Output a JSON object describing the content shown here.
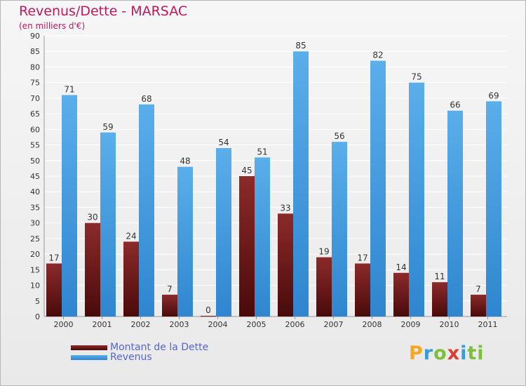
{
  "header": {
    "title": "Revenus/Dette - MARSAC",
    "subtitle": "(en milliers d'€)"
  },
  "legend": {
    "debt_label": "Montant de la Dette",
    "revenue_label": "Revenus"
  },
  "logo": {
    "text": "Proxiti",
    "letters": [
      "P",
      "r",
      "o",
      "x",
      "i",
      "ti"
    ]
  },
  "colors": {
    "title": "#c2185b",
    "debt": "#7a1f1f",
    "revenue": "#4a9fe0",
    "legend_text": "#5465d8"
  },
  "chart_data": {
    "type": "bar",
    "title": "Revenus/Dette - MARSAC",
    "subtitle": "(en milliers d'€)",
    "categories": [
      "2000",
      "2001",
      "2002",
      "2003",
      "2004",
      "2005",
      "2006",
      "2007",
      "2008",
      "2009",
      "2010",
      "2011"
    ],
    "series": [
      {
        "name": "Montant de la Dette",
        "values": [
          17,
          30,
          24,
          7,
          0,
          45,
          33,
          19,
          17,
          14,
          11,
          7
        ]
      },
      {
        "name": "Revenus",
        "values": [
          71,
          59,
          68,
          48,
          54,
          51,
          85,
          56,
          82,
          75,
          66,
          69
        ]
      }
    ],
    "ylim": [
      0,
      90
    ],
    "yticks": [
      0,
      5,
      10,
      15,
      20,
      25,
      30,
      35,
      40,
      45,
      50,
      55,
      60,
      65,
      70,
      75,
      80,
      85,
      90
    ],
    "grid": true,
    "legend_position": "bottom-left"
  }
}
